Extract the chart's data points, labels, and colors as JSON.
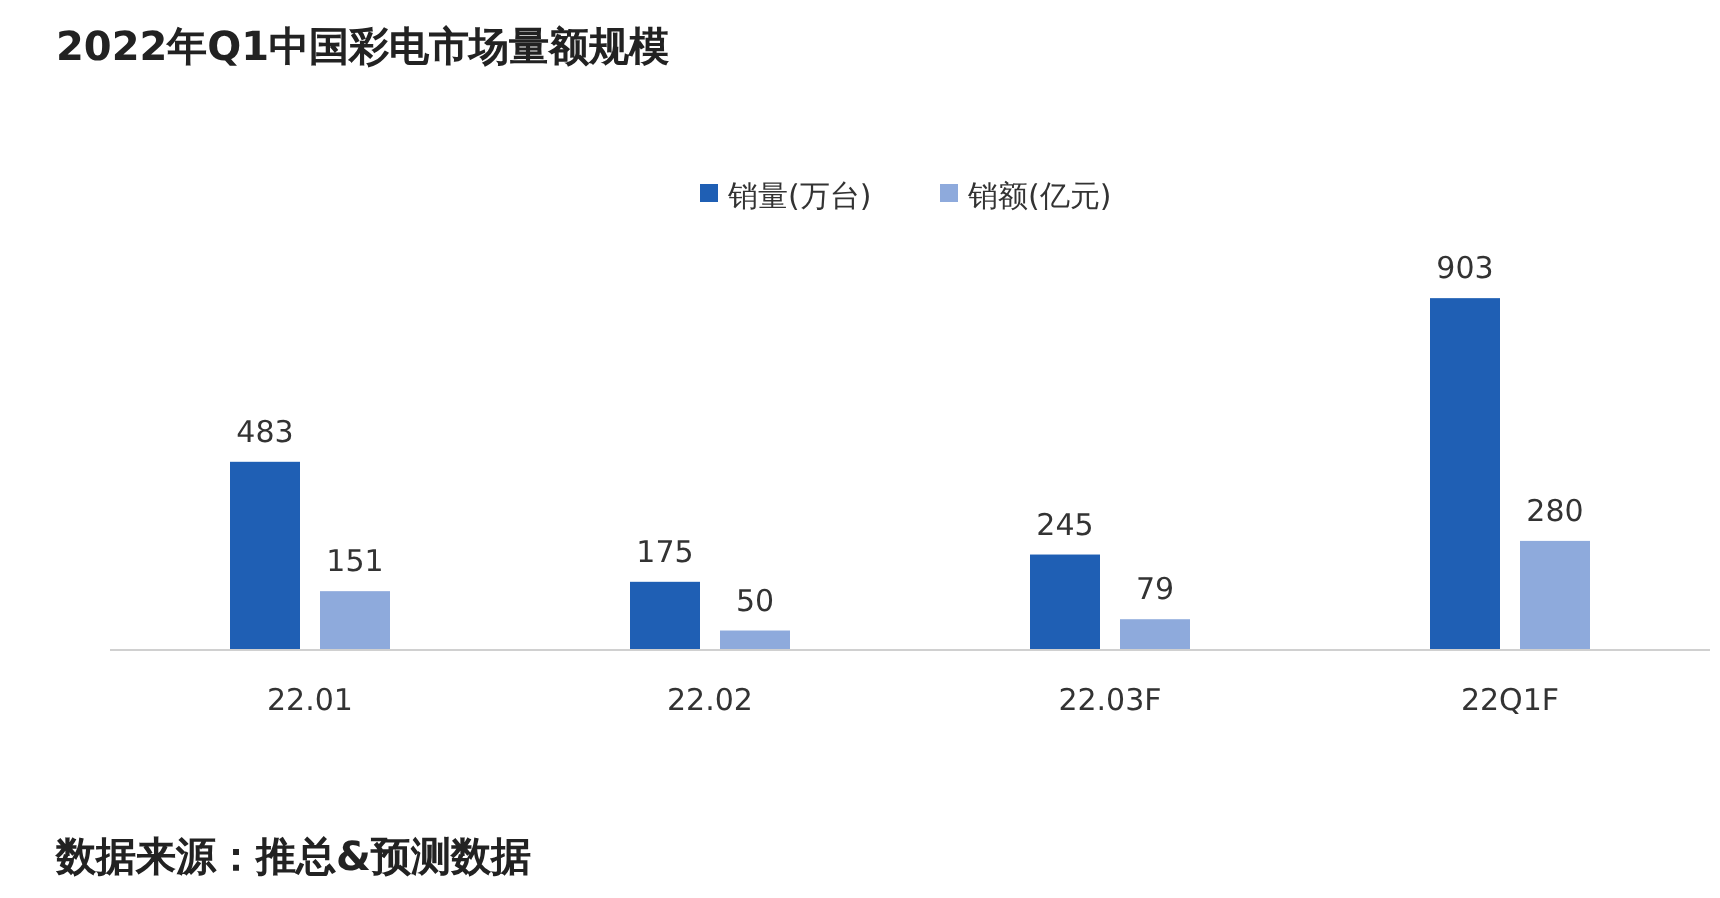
{
  "chart_data": {
    "type": "bar",
    "title": "2022年Q1中国彩电市场量额规模",
    "annotations": [
      "数据来源：推总&预测数据"
    ],
    "categories": [
      "22.01",
      "22.02",
      "22.03F",
      "22Q1F"
    ],
    "series": [
      {
        "name": "销量(万台)",
        "color": "#1f5fb4",
        "values": [
          483,
          175,
          245,
          903
        ]
      },
      {
        "name": "销额(亿元)",
        "color": "#8eaadc",
        "values": [
          151,
          50,
          79,
          280
        ]
      }
    ],
    "data_labels": true,
    "legend": "top"
  }
}
